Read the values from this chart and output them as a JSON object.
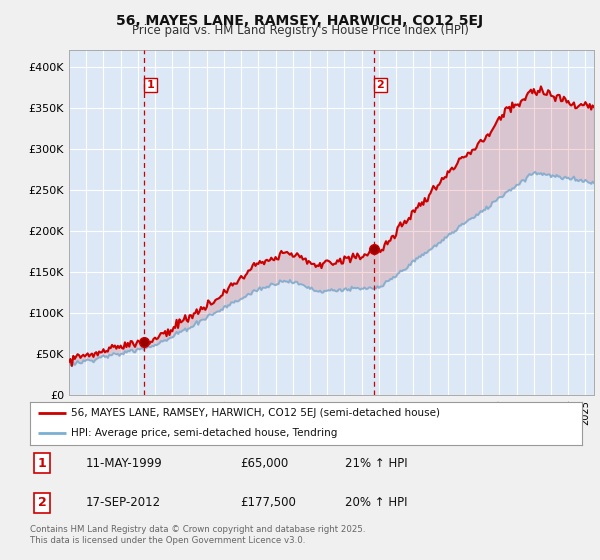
{
  "title": "56, MAYES LANE, RAMSEY, HARWICH, CO12 5EJ",
  "subtitle": "Price paid vs. HM Land Registry's House Price Index (HPI)",
  "legend_line1": "56, MAYES LANE, RAMSEY, HARWICH, CO12 5EJ (semi-detached house)",
  "legend_line2": "HPI: Average price, semi-detached house, Tendring",
  "footer": "Contains HM Land Registry data © Crown copyright and database right 2025.\nThis data is licensed under the Open Government Licence v3.0.",
  "transaction1_label": "1",
  "transaction1_date": "11-MAY-1999",
  "transaction1_price": "£65,000",
  "transaction1_hpi": "21% ↑ HPI",
  "transaction2_label": "2",
  "transaction2_date": "17-SEP-2012",
  "transaction2_price": "£177,500",
  "transaction2_hpi": "20% ↑ HPI",
  "sale1_x": 1999.36,
  "sale1_y": 65000,
  "sale2_x": 2012.72,
  "sale2_y": 177500,
  "vline1_x": 1999.36,
  "vline2_x": 2012.72,
  "red_color": "#cc0000",
  "blue_color": "#7bafd4",
  "vline_color": "#cc0000",
  "background_color": "#f0f0f0",
  "plot_bg_color": "#dce8f5",
  "grid_color": "#ffffff",
  "ylim": [
    0,
    420000
  ],
  "xlim_start": 1995.0,
  "xlim_end": 2025.5
}
